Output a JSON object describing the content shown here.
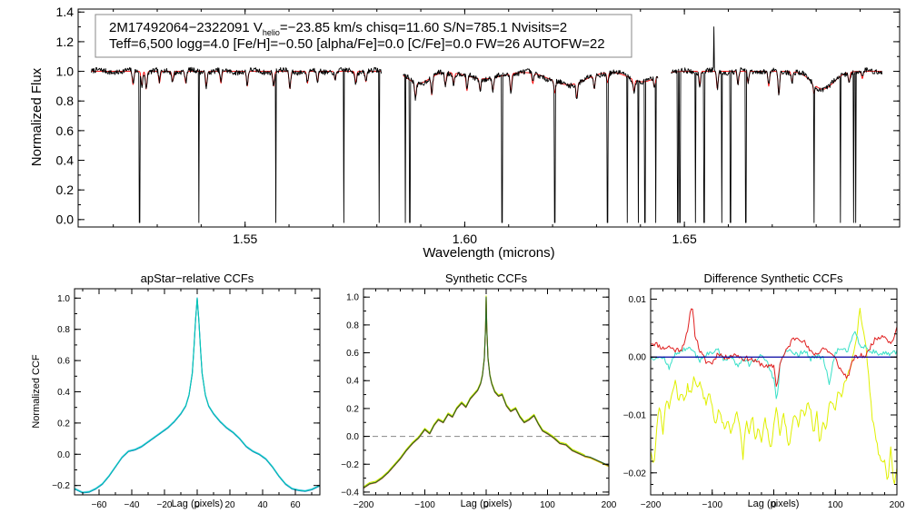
{
  "chart_data": [
    {
      "type": "line",
      "id": "spectrum",
      "header_line1_a": "2M17492064−2322091  V",
      "header_line1_sub": "helio",
      "header_line1_b": "=−23.85 km/s  chisq=11.60  S/N=785.1  Nvisits=2",
      "header_line2": "Teff=6,500 logg=4.0 [Fe/H]=−0.50 [alpha/Fe]=0.0 [C/Fe]=0.0 FW=26 AUTOFW=22",
      "xlabel": "Wavelength (microns)",
      "ylabel": "Normalized Flux",
      "xlim": [
        1.512,
        1.699
      ],
      "ylim": [
        -0.05,
        1.42
      ],
      "x_ticks": [
        "1.55",
        "1.60",
        "1.65"
      ],
      "x_tick_values": [
        1.55,
        1.6,
        1.65
      ],
      "y_ticks": [
        "0.0",
        "0.2",
        "0.4",
        "0.6",
        "0.8",
        "1.0",
        "1.2",
        "1.4"
      ],
      "y_tick_values": [
        0.0,
        0.2,
        0.4,
        0.6,
        0.8,
        1.0,
        1.2,
        1.4
      ],
      "chip_ranges": [
        [
          1.515,
          1.581
        ],
        [
          1.586,
          1.644
        ],
        [
          1.647,
          1.695
        ]
      ],
      "series": [
        {
          "name": "observed",
          "color": "#000000"
        },
        {
          "name": "model",
          "color": "#ff0000"
        }
      ],
      "dropouts": [
        1.526,
        1.5395,
        1.557,
        1.5725,
        1.5805,
        1.5865,
        1.5875,
        1.6085,
        1.6205,
        1.6325,
        1.6345,
        1.637,
        1.6395,
        1.641,
        1.6435,
        1.6485,
        1.649,
        1.6525,
        1.6545,
        1.6585,
        1.6605,
        1.664,
        1.6795,
        1.6855,
        1.6885,
        1.689
      ],
      "spikes": [
        [
          1.6567,
          1.3
        ],
        [
          1.6345,
          1.0
        ]
      ],
      "broad_features": [
        [
          1.5895,
          0.92,
          0.0025
        ],
        [
          1.6045,
          0.95,
          0.004
        ],
        [
          1.6235,
          0.91,
          0.004
        ],
        [
          1.6405,
          0.93,
          0.003
        ],
        [
          1.6815,
          0.88,
          0.0025
        ]
      ],
      "model_lines": [
        [
          1.5245,
          0.91
        ],
        [
          1.5265,
          0.9
        ],
        [
          1.5275,
          0.88
        ],
        [
          1.5305,
          0.92
        ],
        [
          1.5335,
          0.93
        ],
        [
          1.5365,
          0.92
        ],
        [
          1.5412,
          0.9
        ],
        [
          1.5445,
          0.92
        ],
        [
          1.5505,
          0.9
        ],
        [
          1.5565,
          0.9
        ],
        [
          1.5602,
          0.88
        ],
        [
          1.5642,
          0.92
        ],
        [
          1.5665,
          0.93
        ],
        [
          1.5705,
          0.94
        ],
        [
          1.5752,
          0.92
        ],
        [
          1.5775,
          0.93
        ],
        [
          1.5888,
          0.9
        ],
        [
          1.5925,
          0.88
        ],
        [
          1.5956,
          0.91
        ],
        [
          1.5975,
          0.93
        ],
        [
          1.6005,
          0.9
        ],
        [
          1.6035,
          0.92
        ],
        [
          1.6064,
          0.91
        ],
        [
          1.6105,
          0.88
        ],
        [
          1.6155,
          0.93
        ],
        [
          1.6205,
          0.92
        ],
        [
          1.6255,
          0.9
        ],
        [
          1.6295,
          0.91
        ],
        [
          1.6325,
          0.93
        ],
        [
          1.6385,
          0.92
        ],
        [
          1.6432,
          0.94
        ],
        [
          1.6535,
          0.91
        ],
        [
          1.6575,
          0.88
        ],
        [
          1.6622,
          0.91
        ],
        [
          1.6645,
          0.92
        ],
        [
          1.6692,
          0.9
        ],
        [
          1.6715,
          0.84
        ],
        [
          1.6745,
          0.93
        ],
        [
          1.6795,
          0.94
        ],
        [
          1.6875,
          0.93
        ],
        [
          1.6905,
          0.95
        ]
      ]
    },
    {
      "type": "line",
      "id": "apstar_ccf",
      "title": "apStar−relative CCFs",
      "xlabel": "Lag (pixels)",
      "ylabel": "Normalized CCF",
      "xlim": [
        -75,
        75
      ],
      "ylim": [
        -0.26,
        1.06
      ],
      "x_ticks": [
        "−60",
        "−40",
        "−20",
        "0",
        "20",
        "40",
        "60"
      ],
      "x_tick_values": [
        -60,
        -40,
        -20,
        0,
        20,
        40,
        60
      ],
      "y_ticks": [
        "−0.2",
        "0.0",
        "0.2",
        "0.4",
        "0.6",
        "0.8",
        "1.0"
      ],
      "y_tick_values": [
        -0.2,
        0.0,
        0.2,
        0.4,
        0.6,
        0.8,
        1.0
      ],
      "curve_x": [
        -75,
        -70,
        -66,
        -62,
        -58,
        -54,
        -50,
        -46,
        -42,
        -38,
        -34,
        -30,
        -26,
        -22,
        -18,
        -14,
        -10,
        -7,
        -5,
        -3,
        -2,
        -1,
        0,
        1,
        2,
        3,
        5,
        7,
        10,
        14,
        18,
        22,
        26,
        30,
        34,
        38,
        42,
        46,
        50,
        54,
        58,
        62,
        66,
        70,
        75
      ],
      "curve_y": [
        -0.22,
        -0.245,
        -0.24,
        -0.22,
        -0.19,
        -0.14,
        -0.08,
        -0.02,
        0.02,
        0.03,
        0.05,
        0.08,
        0.11,
        0.14,
        0.17,
        0.21,
        0.26,
        0.31,
        0.38,
        0.52,
        0.68,
        0.86,
        1.0,
        0.86,
        0.68,
        0.52,
        0.38,
        0.31,
        0.26,
        0.21,
        0.17,
        0.14,
        0.1,
        0.05,
        0.02,
        0.0,
        -0.03,
        -0.08,
        -0.14,
        -0.19,
        -0.22,
        -0.23,
        -0.235,
        -0.225,
        -0.2
      ],
      "series": [
        {
          "name": "ccf-1",
          "color": "#9ed8ff"
        },
        {
          "name": "ccf-2",
          "color": "#1a6fc0"
        },
        {
          "name": "ccf-3",
          "color": "#00c8b4"
        }
      ]
    },
    {
      "type": "line",
      "id": "synthetic_ccf",
      "title": "Synthetic CCFs",
      "xlabel": "Lag (pixels)",
      "xlim": [
        -200,
        200
      ],
      "ylim": [
        -0.42,
        1.06
      ],
      "x_ticks": [
        "−200",
        "−100",
        "0",
        "100",
        "200"
      ],
      "x_tick_values": [
        -200,
        -100,
        0,
        100,
        200
      ],
      "y_ticks": [
        "−0.4",
        "−0.2",
        "0.0",
        "0.2",
        "0.4",
        "0.6",
        "0.8",
        "1.0"
      ],
      "y_tick_values": [
        -0.4,
        -0.2,
        0.0,
        0.2,
        0.4,
        0.6,
        0.8,
        1.0
      ],
      "zero_line": 0.0,
      "curve_x": [
        -200,
        -190,
        -180,
        -170,
        -160,
        -150,
        -140,
        -130,
        -120,
        -110,
        -100,
        -92,
        -85,
        -78,
        -70,
        -62,
        -55,
        -48,
        -40,
        -33,
        -26,
        -20,
        -14,
        -9,
        -6,
        -3,
        -1,
        0,
        1,
        3,
        6,
        9,
        14,
        20,
        26,
        33,
        40,
        48,
        55,
        62,
        70,
        78,
        85,
        92,
        100,
        110,
        120,
        130,
        140,
        150,
        160,
        170,
        180,
        190,
        200
      ],
      "curve_y": [
        -0.37,
        -0.34,
        -0.33,
        -0.3,
        -0.26,
        -0.21,
        -0.16,
        -0.1,
        -0.05,
        -0.01,
        0.05,
        0.02,
        0.08,
        0.12,
        0.1,
        0.16,
        0.14,
        0.2,
        0.24,
        0.21,
        0.27,
        0.3,
        0.33,
        0.38,
        0.44,
        0.56,
        0.78,
        1.0,
        0.78,
        0.56,
        0.44,
        0.38,
        0.32,
        0.29,
        0.3,
        0.22,
        0.18,
        0.2,
        0.14,
        0.1,
        0.12,
        0.15,
        0.09,
        0.04,
        0.02,
        -0.01,
        -0.05,
        -0.06,
        -0.1,
        -0.12,
        -0.14,
        -0.15,
        -0.17,
        -0.19,
        -0.21
      ],
      "series": [
        {
          "name": "synthetic-a",
          "color": "#d4e800"
        },
        {
          "name": "synthetic-b",
          "color": "#d84a20"
        },
        {
          "name": "synthetic-c",
          "color": "#2a6a20"
        }
      ]
    },
    {
      "type": "line",
      "id": "difference_ccf",
      "title": "Difference Synthetic CCFs",
      "xlabel": "Lag (pixels)",
      "xlim": [
        -200,
        200
      ],
      "ylim": [
        -0.0238,
        0.0118
      ],
      "x_ticks": [
        "−200",
        "−100",
        "0",
        "100",
        "200"
      ],
      "x_tick_values": [
        -200,
        -100,
        0,
        100,
        200
      ],
      "y_ticks": [
        "−0.02",
        "−0.01",
        "0.00",
        "0.01"
      ],
      "y_tick_values": [
        -0.02,
        -0.01,
        0.0,
        0.01
      ],
      "zero_line": 0.0,
      "series": [
        {
          "name": "red",
          "color": "#e02020",
          "x": [
            -200,
            -190,
            -180,
            -170,
            -160,
            -150,
            -140,
            -133,
            -128,
            -120,
            -110,
            -100,
            -90,
            -80,
            -70,
            -60,
            -50,
            -40,
            -30,
            -20,
            -10,
            0,
            5,
            10,
            20,
            30,
            40,
            50,
            60,
            70,
            80,
            90,
            100,
            110,
            120,
            130,
            140,
            150,
            160,
            170,
            180,
            190,
            200
          ],
          "y": [
            0.0025,
            0.0022,
            0.0015,
            0.0018,
            0.0012,
            0.0014,
            0.0042,
            0.0095,
            0.004,
            0.001,
            -0.0008,
            -0.001,
            0.0008,
            -0.0002,
            0.0003,
            0.0004,
            -0.0003,
            -0.0002,
            -0.0008,
            -0.0012,
            -0.0018,
            -0.0015,
            -0.0055,
            -0.001,
            0.001,
            0.003,
            0.0035,
            0.0025,
            0.0008,
            0.0005,
            0.0016,
            0.0009,
            -0.0003,
            -0.0025,
            -0.0035,
            -0.0002,
            0.0002,
            0.0002,
            0.0025,
            0.0035,
            0.0038,
            0.0022,
            0.0048
          ]
        },
        {
          "name": "cyan",
          "color": "#38e0c8",
          "x": [
            -200,
            -190,
            -180,
            -170,
            -160,
            -150,
            -140,
            -130,
            -120,
            -110,
            -100,
            -90,
            -80,
            -70,
            -60,
            -50,
            -40,
            -30,
            -20,
            -10,
            0,
            5,
            10,
            20,
            30,
            40,
            50,
            60,
            70,
            80,
            90,
            100,
            110,
            120,
            130,
            140,
            150,
            160,
            170,
            180,
            190,
            200
          ],
          "y": [
            0.0,
            -0.0002,
            0.0,
            -0.0018,
            0.0005,
            0.0012,
            0.0015,
            0.0008,
            -0.0005,
            0.0005,
            0.0006,
            0.0014,
            -0.0008,
            0.0006,
            -0.0015,
            -0.0005,
            -0.0012,
            -0.0008,
            0.0005,
            -0.0008,
            -0.004,
            -0.008,
            -0.0015,
            0.0012,
            0.0008,
            0.0004,
            0.0012,
            -0.0004,
            0.0002,
            -0.0002,
            -0.0045,
            0.0008,
            0.0015,
            0.0012,
            0.0045,
            0.0022,
            0.0015,
            0.001,
            0.0005,
            0.0008,
            0.0006,
            0.0008
          ]
        },
        {
          "name": "yellow",
          "color": "#e0f000",
          "x": [
            -200,
            -195,
            -190,
            -185,
            -180,
            -175,
            -170,
            -165,
            -160,
            -155,
            -150,
            -145,
            -140,
            -135,
            -130,
            -125,
            -120,
            -115,
            -110,
            -105,
            -100,
            -95,
            -90,
            -85,
            -80,
            -75,
            -70,
            -65,
            -60,
            -55,
            -50,
            -45,
            -40,
            -35,
            -30,
            -25,
            -20,
            -15,
            -10,
            -5,
            0,
            5,
            10,
            15,
            20,
            25,
            30,
            35,
            40,
            45,
            50,
            55,
            60,
            65,
            70,
            75,
            80,
            85,
            90,
            95,
            100,
            105,
            110,
            115,
            120,
            125,
            130,
            135,
            140,
            145,
            150,
            155,
            160,
            165,
            170,
            175,
            180,
            185,
            190,
            195,
            200
          ],
          "y": [
            -0.016,
            -0.019,
            -0.012,
            -0.008,
            -0.0135,
            -0.007,
            -0.009,
            -0.006,
            -0.004,
            -0.0075,
            -0.006,
            -0.008,
            -0.005,
            -0.0065,
            -0.0035,
            -0.0055,
            -0.0045,
            -0.0065,
            -0.008,
            -0.0055,
            -0.0085,
            -0.012,
            -0.0095,
            -0.0105,
            -0.0125,
            -0.0105,
            -0.0135,
            -0.0115,
            -0.0095,
            -0.0125,
            -0.0175,
            -0.011,
            -0.0135,
            -0.0095,
            -0.0145,
            -0.0115,
            -0.015,
            -0.0105,
            -0.0125,
            -0.0165,
            -0.0115,
            -0.0085,
            -0.0135,
            -0.0095,
            -0.0125,
            -0.016,
            -0.0115,
            -0.0095,
            -0.0125,
            -0.0085,
            -0.0105,
            -0.0075,
            -0.009,
            -0.0135,
            -0.0095,
            -0.0155,
            -0.011,
            -0.0125,
            -0.0085,
            -0.0075,
            -0.009,
            -0.0055,
            -0.0065,
            -0.0045,
            -0.003,
            -0.0015,
            0.0005,
            0.0035,
            0.0085,
            0.0045,
            0.0015,
            -0.0045,
            -0.0105,
            -0.0135,
            -0.0165,
            -0.0185,
            -0.0175,
            -0.0215,
            -0.0155,
            -0.0225,
            -0.0195
          ]
        },
        {
          "name": "navy",
          "color": "#0000a0",
          "x": [
            -200,
            200
          ],
          "y": [
            0.0,
            0.0
          ]
        }
      ]
    }
  ]
}
